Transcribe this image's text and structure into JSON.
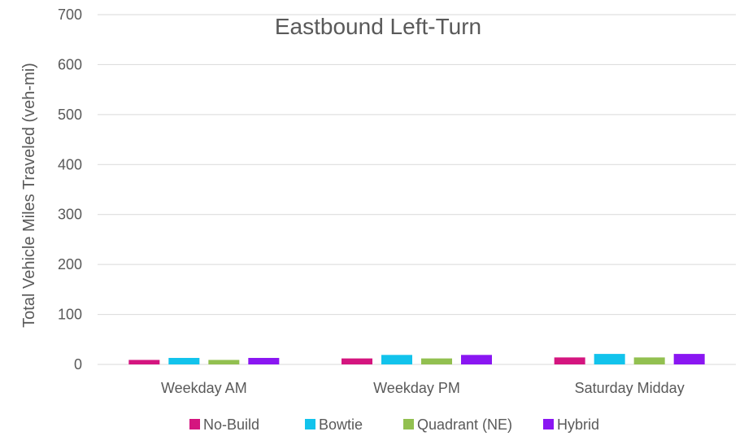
{
  "chart_data": {
    "type": "bar",
    "title": "Eastbound Left-Turn",
    "xlabel": "",
    "ylabel": "Total Vehicle Miles Traveled (veh-mi)",
    "ylim": [
      0,
      700
    ],
    "yticks": [
      0,
      100,
      200,
      300,
      400,
      500,
      600,
      700
    ],
    "categories": [
      "Weekday AM",
      "Weekday PM",
      "Saturday Midday"
    ],
    "series": [
      {
        "name": "No-Build",
        "color": "#d4157f",
        "values": [
          9,
          12,
          14
        ]
      },
      {
        "name": "Bowtie",
        "color": "#12c3ec",
        "values": [
          13,
          19,
          21
        ]
      },
      {
        "name": "Quadrant (NE)",
        "color": "#92c050",
        "values": [
          9,
          12,
          14
        ]
      },
      {
        "name": "Hybrid",
        "color": "#8a16f2",
        "values": [
          13,
          19,
          21
        ]
      }
    ],
    "grid": true,
    "legend_position": "bottom"
  }
}
